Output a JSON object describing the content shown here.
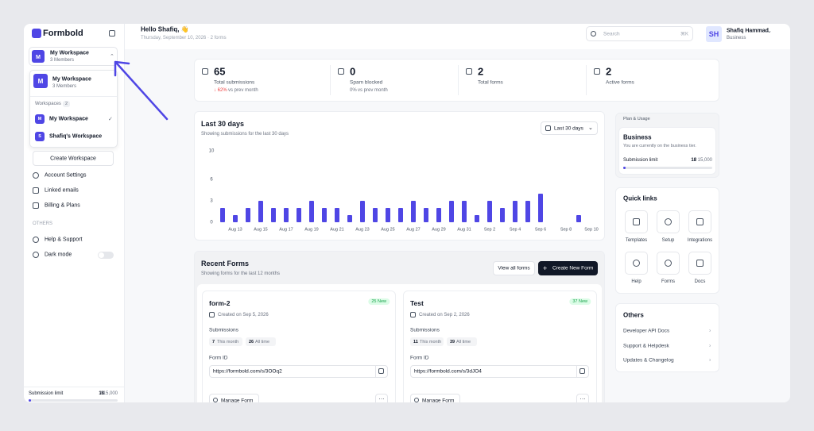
{
  "sidebar": {
    "brand": "Formbold",
    "workspace": {
      "initial": "M",
      "name": "My Workspace",
      "members": "3 Members"
    },
    "dropdown": {
      "current": {
        "initial": "M",
        "name": "My Workspace",
        "members": "3 Members"
      },
      "workspaces_label": "Workspaces",
      "workspaces_count": 2,
      "items": [
        {
          "initial": "M",
          "name": "My Workspace"
        },
        {
          "initial": "S",
          "name": "Shafiq's Workspace"
        }
      ],
      "create": "Create Workspace"
    },
    "menu": [
      "Account Settings",
      "Linked emails",
      "Billing & Plans"
    ],
    "others_label": "OTHERS",
    "others": [
      "Help & Support",
      "Dark mode"
    ],
    "submission_limit": {
      "label": "Submission limit",
      "used": 18,
      "total": "/ 15,000"
    }
  },
  "header": {
    "greeting": "Hello Shafiq, 👋",
    "subtitle": "Thursday, September 10, 2026 · 2 forms",
    "search": "Search",
    "shortcut": "⌘K",
    "user": {
      "initials": "SH",
      "name": "Shafiq Hammad",
      "plan": "Business"
    }
  },
  "stats": [
    {
      "value": 65,
      "label": "Total submissions",
      "change": "↓ 62%",
      "note": "vs prev month"
    },
    {
      "value": 0,
      "label": "Spam blocked",
      "change": "0%",
      "note": "vs prev month"
    },
    {
      "value": 2,
      "label": "Total forms"
    },
    {
      "value": 2,
      "label": "Active forms"
    }
  ],
  "chart_data": {
    "type": "bar",
    "title": "Last 30 days",
    "subtitle": "Showing submissions for the last 30 days",
    "filter": "Last 30 days",
    "categories": [
      null,
      "Aug 13",
      null,
      "Aug 15",
      null,
      "Aug 17",
      null,
      "Aug 19",
      null,
      "Aug 21",
      null,
      "Aug 23",
      null,
      "Aug 25",
      null,
      "Aug 27",
      null,
      "Aug 29",
      null,
      "Aug 31",
      null,
      "Sep 2",
      null,
      "Sep 4",
      null,
      "Sep 6",
      null,
      "Sep 8",
      null,
      "Sep 10"
    ],
    "values": [
      2,
      1,
      2,
      3,
      2,
      2,
      2,
      3,
      2,
      2,
      1,
      3,
      2,
      2,
      2,
      3,
      2,
      2,
      3,
      3,
      1,
      3,
      2,
      3,
      3,
      4,
      0,
      0,
      1,
      0
    ],
    "color": "#4f46e5",
    "ylim": [
      0,
      10
    ],
    "yticks": [
      0,
      3,
      6,
      10
    ],
    "grid": false
  },
  "plan": {
    "header": "Plan & Usage",
    "name": "Business",
    "description": "You are currently on the business tier.",
    "limit_label": "Submission limit",
    "used": 18,
    "total": "/ 15,000"
  },
  "quick_links": {
    "title": "Quick links",
    "items": [
      "Templates",
      "Setup",
      "Integrations",
      "Help",
      "Forms",
      "Docs"
    ]
  },
  "others": {
    "title": "Others",
    "items": [
      "Developer API Docs",
      "Support & Helpdesk",
      "Updates & Changelog"
    ]
  },
  "recent_forms": {
    "title": "Recent Forms",
    "subtitle": "Showing forms for the last 12 months",
    "view_all": "View all forms",
    "create": "Create New Form",
    "forms": [
      {
        "name": "form-2",
        "badge": "25 New",
        "created": "Created on Sep 5, 2026",
        "submissions_label": "Submissions",
        "this_month": 7,
        "this_month_label": "This month",
        "all_time": 26,
        "all_time_label": "All time",
        "form_id_label": "Form ID",
        "url": "https://formbold.com/s/3OOq2",
        "manage": "Manage Form"
      },
      {
        "name": "Test",
        "badge": "37 New",
        "created": "Created on Sep 2, 2026",
        "submissions_label": "Submissions",
        "this_month": 11,
        "this_month_label": "This month",
        "all_time": 39,
        "all_time_label": "All time",
        "form_id_label": "Form ID",
        "url": "https://formbold.com/s/3dJO4",
        "manage": "Manage Form"
      }
    ]
  }
}
